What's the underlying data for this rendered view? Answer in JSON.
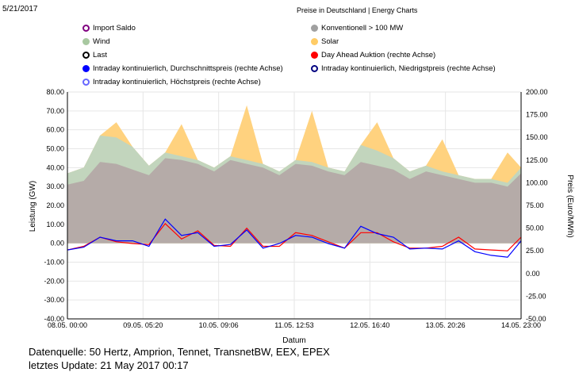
{
  "header": {
    "date": "5/21/2017",
    "title": "Preise in Deutschland | Energy Charts"
  },
  "legend": [
    {
      "label": "Import Saldo",
      "style": "hollow",
      "color": "#800080"
    },
    {
      "label": "Konventionell > 100 MW",
      "style": "filled",
      "color": "#a0a0a0"
    },
    {
      "label": "Wind",
      "style": "filled",
      "color": "#a8c8a0"
    },
    {
      "label": "Solar",
      "style": "filled",
      "color": "#ffcc66"
    },
    {
      "label": "Last",
      "style": "hollow",
      "color": "#000000"
    },
    {
      "label": "Day Ahead Auktion (rechte Achse)",
      "style": "filled",
      "color": "#ff0000"
    },
    {
      "label": "Intraday kontinuierlich, Durchschnittspreis (rechte Achse)",
      "style": "filled",
      "color": "#0000ff"
    },
    {
      "label": "Intraday kontinuierlich, Niedrigstpreis (rechte Achse)",
      "style": "hollow",
      "color": "#000080"
    },
    {
      "label": "Intraday kontinuierlich, Höchstpreis (rechte Achse)",
      "style": "hollow",
      "color": "#6666ff"
    }
  ],
  "footer": {
    "source": "Datenquelle: 50 Hertz, Amprion, Tennet, TransnetBW, EEX, EPEX",
    "update": "letztes Update: 21 May 2017 00:17"
  },
  "chart_data": {
    "type": "area",
    "xlabel": "Datum",
    "ylabel": "Leistung (GW)",
    "y2label": "Preis (Euro/MWh)",
    "ylim": [
      -40,
      80
    ],
    "y2lim": [
      -50,
      200
    ],
    "x_tick_labels": [
      "08.05. 00:00",
      "09.05. 05:20",
      "10.05. 09:06",
      "11.05. 12:53",
      "12.05. 16:40",
      "13.05. 20:26",
      "14.05. 23:00"
    ],
    "y_tick_labels": [
      "80.00",
      "70.00",
      "60.00",
      "50.00",
      "40.00",
      "30.00",
      "20.00",
      "10.00",
      "0.00",
      "-10.00",
      "-20.00",
      "-30.00",
      "-40.00"
    ],
    "y2_tick_labels": [
      "200.00",
      "175.00",
      "150.00",
      "125.00",
      "100.00",
      "75.00",
      "50.00",
      "25.00",
      "0.00",
      "-25.00",
      "-50.00"
    ],
    "x_hours": [
      0,
      6,
      12,
      18,
      24,
      30,
      36,
      42,
      48,
      54,
      60,
      66,
      72,
      78,
      84,
      90,
      96,
      102,
      108,
      114,
      120,
      126,
      132,
      138,
      144,
      150,
      156,
      162,
      167
    ],
    "series": [
      {
        "name": "Konventionell > 100 MW",
        "color": "#b5aba8",
        "values": [
          31,
          33,
          43,
          42,
          39,
          36,
          45,
          44,
          42,
          38,
          44,
          42,
          40,
          36,
          42,
          41,
          38,
          36,
          43,
          41,
          39,
          34,
          38,
          36,
          34,
          32,
          32,
          30,
          37
        ]
      },
      {
        "name": "Wind",
        "color": "#c2d5bd",
        "values": [
          6,
          7,
          14,
          14,
          12,
          5,
          3,
          2,
          2,
          2,
          2,
          2,
          2,
          2,
          2,
          2,
          2,
          2,
          9,
          8,
          6,
          4,
          3,
          2,
          2,
          2,
          2,
          2,
          3
        ]
      },
      {
        "name": "Solar",
        "color": "#ffd27f",
        "values": [
          0,
          0,
          0,
          8,
          0,
          0,
          0,
          17,
          0,
          0,
          0,
          29,
          0,
          0,
          0,
          27,
          0,
          0,
          0,
          15,
          0,
          0,
          0,
          17,
          0,
          0,
          0,
          16,
          0
        ]
      },
      {
        "name": "Day Ahead Auktion (rechte Achse)",
        "color": "#ff0000",
        "axis": "right",
        "values": [
          26,
          30,
          40,
          35,
          33,
          32,
          55,
          38,
          47,
          31,
          30,
          50,
          30,
          30,
          45,
          42,
          35,
          28,
          45,
          45,
          35,
          28,
          28,
          30,
          40,
          27,
          26,
          25,
          40
        ]
      },
      {
        "name": "Intraday kontinuierlich, Durchschnittspreis (rechte Achse)",
        "color": "#0000ff",
        "axis": "right",
        "values": [
          26,
          29,
          40,
          36,
          36,
          30,
          60,
          42,
          45,
          30,
          32,
          48,
          28,
          33,
          42,
          40,
          33,
          28,
          52,
          44,
          40,
          27,
          28,
          27,
          36,
          24,
          20,
          18,
          36
        ]
      }
    ]
  }
}
